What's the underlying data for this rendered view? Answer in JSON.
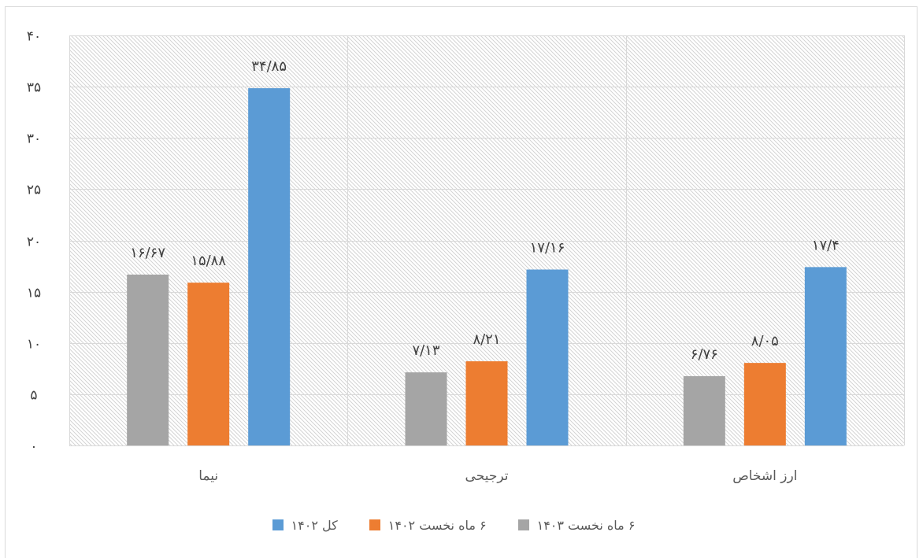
{
  "chart_data": {
    "type": "bar",
    "categories": [
      "نیما",
      "ترجیحی",
      "ارز اشخاص"
    ],
    "series": [
      {
        "name": "۶ ماه نخست ۱۴۰۳",
        "color": "#a5a5a5",
        "values": [
          16.67,
          7.13,
          6.76
        ],
        "labels": [
          "۱۶/۶۷",
          "۷/۱۳",
          "۶/۷۶"
        ]
      },
      {
        "name": "۶ ماه نخست ۱۴۰۲",
        "color": "#ed7d31",
        "values": [
          15.88,
          8.21,
          8.05
        ],
        "labels": [
          "۱۵/۸۸",
          "۸/۲۱",
          "۸/۰۵"
        ]
      },
      {
        "name": "کل ۱۴۰۲",
        "color": "#5b9bd5",
        "values": [
          34.85,
          17.16,
          17.4
        ],
        "labels": [
          "۳۴/۸۵",
          "۱۷/۱۶",
          "۱۷/۴"
        ]
      }
    ],
    "ylim": [
      0,
      40
    ],
    "yticks": [
      0,
      5,
      10,
      15,
      20,
      25,
      30,
      35,
      40
    ],
    "ytick_labels": [
      "۰",
      "۵",
      "۱۰",
      "۱۵",
      "۲۰",
      "۲۵",
      "۳۰",
      "۳۵",
      "۴۰"
    ],
    "grid": true,
    "legend": "bottom"
  }
}
